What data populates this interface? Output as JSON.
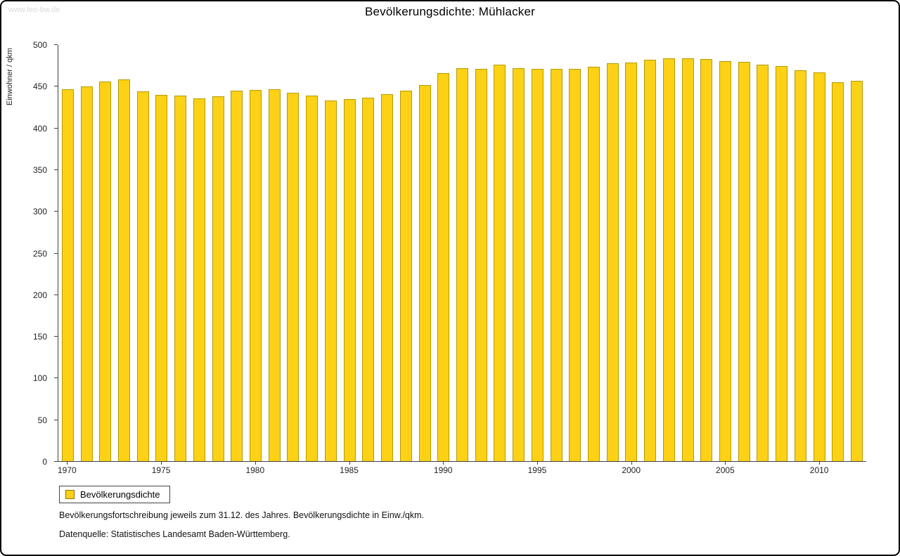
{
  "watermark": "www.leo-bw.de",
  "title": "Bevölkerungsdichte: Mühlacker",
  "legend": {
    "label": "Bevölkerungsdichte"
  },
  "footnotes": [
    "Bevölkerungsfortschreibung jeweils zum 31.12. des Jahres. Bevölkerungsdichte in Einw./qkm.",
    "Datenquelle: Statistisches Landesamt Baden-Württemberg."
  ],
  "colors": {
    "bar_fill": "#fcd116",
    "bar_border": "#b59b00",
    "axis": "#404040",
    "watermark": "#d9d9d9"
  },
  "chart_data": {
    "type": "bar",
    "title": "Bevölkerungsdichte: Mühlacker",
    "xlabel": "",
    "ylabel": "Einwohner / qkm",
    "ylim": [
      0,
      500
    ],
    "ytick_step": 50,
    "x_tick_labels": [
      1970,
      1975,
      1980,
      1985,
      1990,
      1995,
      2000,
      2005,
      2010
    ],
    "grid": false,
    "legend_position": "bottom-left",
    "categories": [
      1970,
      1971,
      1972,
      1973,
      1974,
      1975,
      1976,
      1977,
      1978,
      1979,
      1980,
      1981,
      1982,
      1983,
      1984,
      1985,
      1986,
      1987,
      1988,
      1989,
      1990,
      1991,
      1992,
      1993,
      1994,
      1995,
      1996,
      1997,
      1998,
      1999,
      2000,
      2001,
      2002,
      2003,
      2004,
      2005,
      2006,
      2007,
      2008,
      2009,
      2010,
      2011,
      2012
    ],
    "values": [
      447,
      450,
      456,
      459,
      444,
      440,
      439,
      436,
      438,
      445,
      446,
      447,
      443,
      439,
      433,
      435,
      437,
      441,
      445,
      452,
      466,
      472,
      471,
      476,
      472,
      471,
      471,
      471,
      474,
      478,
      479,
      482,
      484,
      484,
      483,
      481,
      480,
      476,
      475,
      470,
      467,
      455,
      457
    ]
  }
}
